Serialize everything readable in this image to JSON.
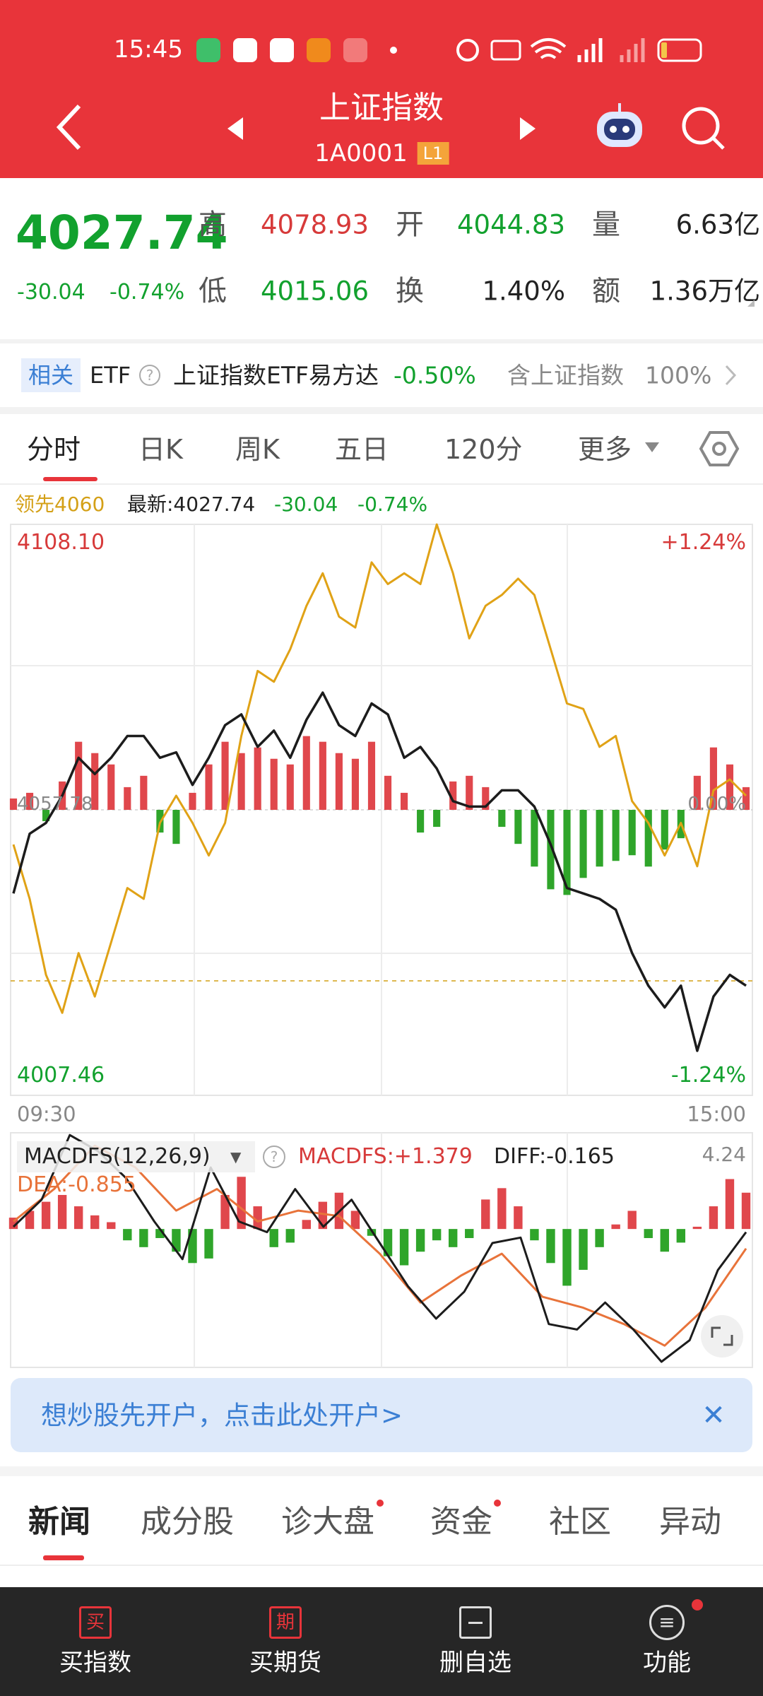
{
  "status_bar": {
    "time": "15:45"
  },
  "header": {
    "title": "上证指数",
    "code": "1A0001",
    "level": "L1"
  },
  "quote": {
    "price": "4027.74",
    "change": "-30.04",
    "change_pct": "-0.74%",
    "fields": [
      {
        "label": "高",
        "value": "4078.93"
      },
      {
        "label": "开",
        "value": "4044.83"
      },
      {
        "label": "量",
        "value": "6.63亿"
      },
      {
        "label": "低",
        "value": "4015.06"
      },
      {
        "label": "换",
        "value": "1.40%"
      },
      {
        "label": "额",
        "value": "1.36万亿"
      }
    ]
  },
  "related": {
    "tag": "相关",
    "type": "ETF",
    "name": "上证指数ETF易方达",
    "change": "-0.50%",
    "weight_label": "含上证指数",
    "weight": "100%"
  },
  "chart_tabs": [
    "分时",
    "日K",
    "周K",
    "五日",
    "120分",
    "更多"
  ],
  "intraday": {
    "legend": {
      "lead": "领先4060",
      "latest": "最新:4027.74",
      "change": "-30.04",
      "change_pct": "-0.74%"
    },
    "price_top": "4108.10",
    "price_mid": "4057.78",
    "price_bottom": "4007.46",
    "pct_top": "+1.24%",
    "pct_mid": "0.00%",
    "pct_bottom": "-1.24%",
    "time_start": "09:30",
    "time_end": "15:00",
    "ylim": [
      4007.46,
      4108.1
    ],
    "price": [
      4043.05,
      4053.57,
      4055.48,
      4060.27,
      4066.96,
      4064.09,
      4066.96,
      4070.79,
      4070.79,
      4066.96,
      4067.92,
      4062.18,
      4066.96,
      4072.7,
      4074.61,
      4068.88,
      4071.74,
      4066.96,
      4073.66,
      4078.44,
      4072.7,
      4070.79,
      4076.53,
      4074.61,
      4066.96,
      4068.88,
      4065.05,
      4059.31,
      4058.35,
      4058.35,
      4061.22,
      4061.22,
      4058.35,
      4051.66,
      4044.01,
      4043.05,
      4042.09,
      4040.18,
      4032.53,
      4026.79,
      4022.96,
      4026.79,
      4015.31,
      4024.87,
      4028.7,
      4026.79
    ],
    "lead_index": [
      4051.66,
      4042.09,
      4028.7,
      4021.99,
      4032.53,
      4024.87,
      4034.44,
      4044.01,
      4042.09,
      4055.48,
      4060.27,
      4055.48,
      4049.74,
      4055.48,
      4070.79,
      4082.27,
      4080.35,
      4086.09,
      4093.74,
      4099.48,
      4091.83,
      4089.92,
      4101.4,
      4097.57,
      4099.48,
      4097.57,
      4108.09,
      4099.48,
      4088.0,
      4093.74,
      4095.66,
      4098.53,
      4095.66,
      4086.09,
      4076.53,
      4075.57,
      4068.88,
      4070.79,
      4059.31,
      4055.48,
      4049.74,
      4055.48,
      4047.83,
      4061.22,
      4063.14,
      4060.27
    ],
    "volume_bars": [
      2,
      3,
      -2,
      5,
      12,
      10,
      8,
      4,
      6,
      -4,
      -6,
      3,
      8,
      12,
      10,
      11,
      9,
      8,
      13,
      12,
      10,
      9,
      12,
      6,
      3,
      -4,
      -3,
      5,
      6,
      4,
      -3,
      -6,
      -10,
      -14,
      -15,
      -12,
      -10,
      -9,
      -8,
      -10,
      -7,
      -5,
      6,
      11,
      8,
      4
    ]
  },
  "macd": {
    "name": "MACDFS(12,26,9)",
    "macdfs": "MACDFS:+1.379",
    "diff": "DIFF:-0.165",
    "dea": "DEA:-0.855",
    "top": "4.24",
    "ylim": [
      -6.1,
      4.24
    ],
    "diff_line": [
      0.1,
      1.29,
      4.14,
      3.43,
      2.24,
      0.33,
      -1.33,
      2.71,
      0.33,
      -0.14,
      1.76,
      0.1,
      1.29,
      -0.62,
      -2.52,
      -3.95,
      -2.76,
      -0.62,
      -0.38,
      -4.19,
      -4.43,
      -3.24,
      -4.43,
      -5.85,
      -4.9,
      -1.81,
      -0.14
    ],
    "dea_line": [
      0.33,
      1.76,
      3.67,
      2.71,
      0.81,
      1.76,
      0.33,
      0.81,
      0.57,
      -1.09,
      -3.24,
      -2.05,
      -1.09,
      -2.99,
      -3.47,
      -4.19,
      -5.14,
      -3.47,
      -0.86
    ],
    "histogram": [
      0.5,
      0.8,
      1.2,
      1.5,
      1.0,
      0.6,
      0.3,
      -0.5,
      -0.8,
      -0.4,
      -1.0,
      -1.5,
      -1.3,
      1.5,
      2.3,
      1.0,
      -0.8,
      -0.6,
      0.4,
      1.2,
      1.6,
      0.8,
      -0.3,
      -1.2,
      -1.6,
      -1.0,
      -0.5,
      -0.8,
      -0.4,
      1.3,
      1.8,
      1.0,
      -0.5,
      -1.5,
      -2.5,
      -1.8,
      -0.8,
      0.2,
      0.8,
      -0.4,
      -1.0,
      -0.6,
      0.1,
      1.0,
      2.2,
      1.6
    ]
  },
  "banner": {
    "text": "想炒股先开户，点击此处开户>"
  },
  "news_tabs": [
    "新闻",
    "成分股",
    "诊大盘",
    "资金",
    "社区",
    "异动"
  ],
  "bottom_nav": [
    {
      "icon": "买",
      "label": "买指数"
    },
    {
      "icon": "期",
      "label": "买期货"
    },
    {
      "label": "删自选"
    },
    {
      "label": "功能"
    }
  ]
}
